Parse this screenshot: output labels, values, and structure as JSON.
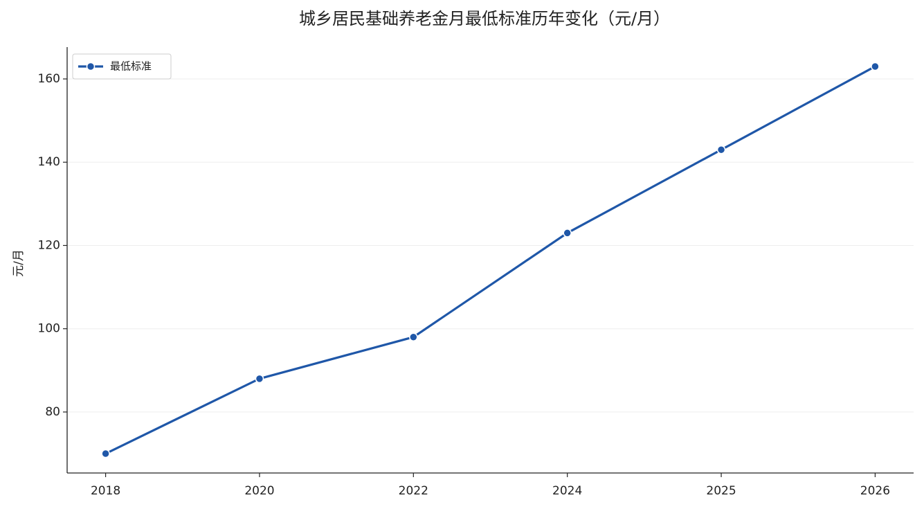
{
  "chart_data": {
    "type": "line",
    "title": "城乡居民基础养老金月最低标准历年变化（元/月）",
    "y_label": "元/月",
    "categories": [
      "2018",
      "2020",
      "2022",
      "2024",
      "2025",
      "2026"
    ],
    "series": [
      {
        "name": "最低标准",
        "color": "#1f57a8",
        "values": [
          70,
          88,
          98,
          123,
          143,
          163
        ]
      }
    ],
    "ylim": [
      65.35,
      167.65
    ],
    "yticks": [
      80,
      100,
      120,
      140,
      160
    ],
    "grid": true,
    "legend": "upper left"
  }
}
